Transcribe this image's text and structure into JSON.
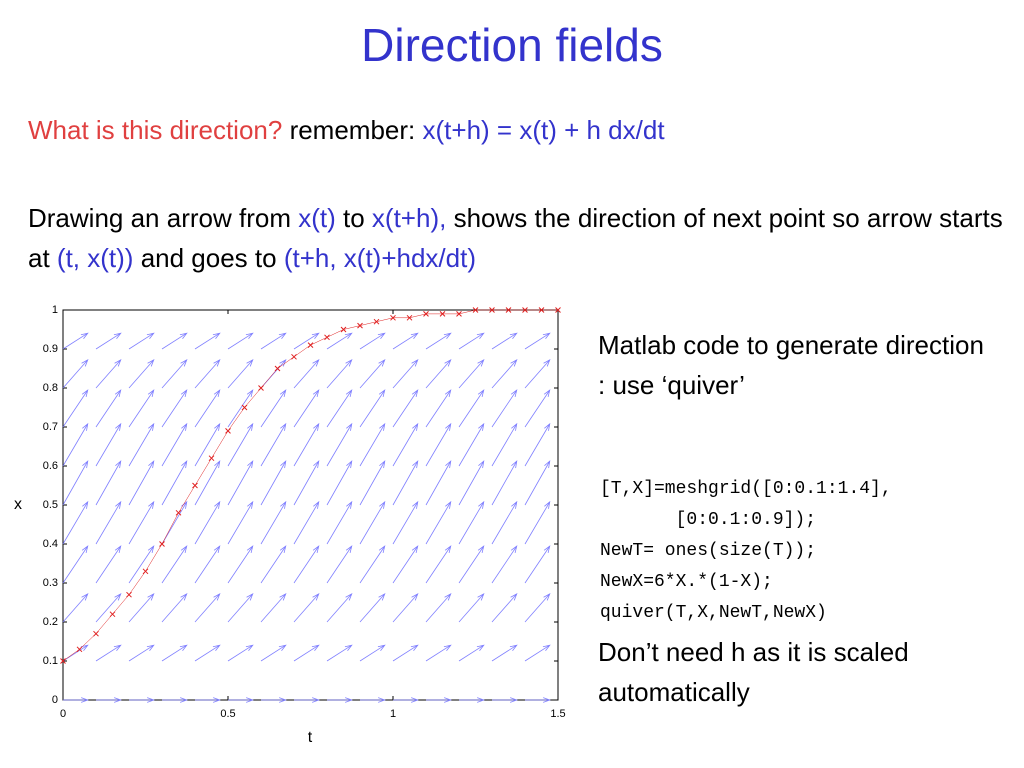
{
  "title": "Direction fields",
  "intro": [
    "What is this direction?",
    "remember:",
    "x(t+h) = x(t) + h dx/dt"
  ],
  "explanation": [
    "Drawing an arrow from",
    "x(t)",
    "to",
    "x(t+h),",
    "shows the direction of next point so arrow starts at",
    "(t, x(t))",
    "and goes to",
    "(t+h, x(t)+hdx/dt)"
  ],
  "side_text": "Matlab code to generate direction : use ‘quiver’",
  "code": [
    "[T,X]=meshgrid([0:0.1:1.4],",
    "       [0:0.1:0.9]);",
    "NewT= ones(size(T));",
    "NewX=6*X.*(1-X);",
    "quiver(T,X,NewT,NewX)"
  ],
  "note": "Don’t need h as it is scaled automatically",
  "chart_data": {
    "type": "quiver",
    "xlabel": "t",
    "ylabel": "x",
    "t_grid": [
      0,
      0.1,
      0.2,
      0.3,
      0.4,
      0.5,
      0.6,
      0.7,
      0.8,
      0.9,
      1.0,
      1.1,
      1.2,
      1.3,
      1.4
    ],
    "x_grid": [
      0,
      0.1,
      0.2,
      0.3,
      0.4,
      0.5,
      0.6,
      0.7,
      0.8,
      0.9
    ],
    "slopes": [
      0,
      0.54,
      0.96,
      1.26,
      1.44,
      1.5,
      1.44,
      1.26,
      0.96,
      0.54
    ],
    "arrow_color": "#8080ff",
    "solution": {
      "color": "#e02020",
      "x": [
        0,
        0.05,
        0.1,
        0.15,
        0.2,
        0.25,
        0.3,
        0.35,
        0.4,
        0.45,
        0.5,
        0.55,
        0.6,
        0.65,
        0.7,
        0.75,
        0.8,
        0.85,
        0.9,
        0.95,
        1.0,
        1.05,
        1.1,
        1.15,
        1.2,
        1.25,
        1.3,
        1.35,
        1.4,
        1.45,
        1.5
      ],
      "values": [
        0.1,
        0.13,
        0.17,
        0.22,
        0.27,
        0.33,
        0.4,
        0.48,
        0.55,
        0.62,
        0.69,
        0.75,
        0.8,
        0.85,
        0.88,
        0.91,
        0.93,
        0.95,
        0.96,
        0.97,
        0.98,
        0.98,
        0.99,
        0.99,
        0.99,
        1.0,
        1.0,
        1.0,
        1.0,
        1.0,
        1.0
      ]
    },
    "xlim": [
      0,
      1.5
    ],
    "xticks": [
      0,
      0.5,
      1,
      1.5
    ],
    "ylim": [
      0,
      1
    ],
    "yticks": [
      0,
      0.1,
      0.2,
      0.3,
      0.4,
      0.5,
      0.6,
      0.7,
      0.8,
      0.9,
      1
    ]
  }
}
